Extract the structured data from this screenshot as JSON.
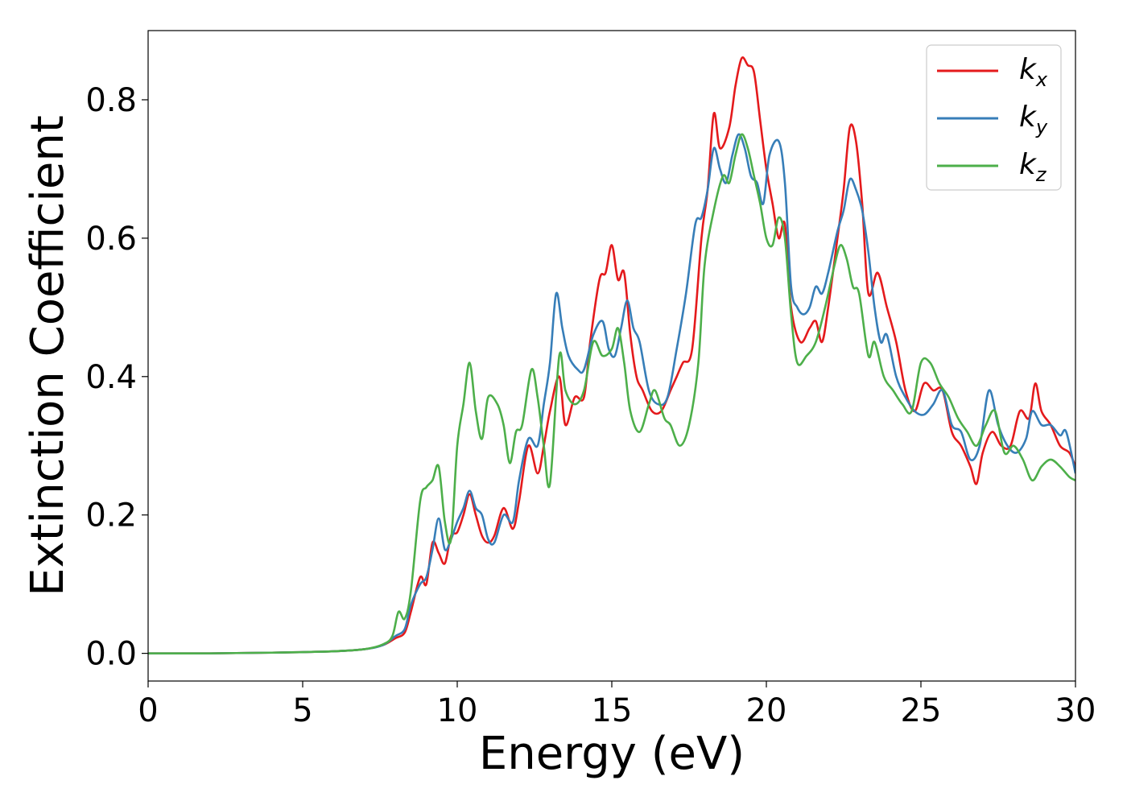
{
  "chart_data": {
    "type": "line",
    "title": "",
    "xlabel": "Energy (eV)",
    "ylabel": "Extinction Coefficient",
    "xlim": [
      0,
      30
    ],
    "ylim": [
      -0.04,
      0.9
    ],
    "xticks": [
      0,
      5,
      10,
      15,
      20,
      25,
      30
    ],
    "xtick_labels": [
      "0",
      "5",
      "10",
      "15",
      "20",
      "25",
      "30"
    ],
    "yticks": [
      0.0,
      0.2,
      0.4,
      0.6,
      0.8
    ],
    "ytick_labels": [
      "0.0",
      "0.2",
      "0.4",
      "0.6",
      "0.8"
    ],
    "grid": false,
    "legend_position": "top-right",
    "series": [
      {
        "name": "k_x",
        "label_main": "k",
        "label_sub": "x",
        "color": "#e41a1c",
        "points": [
          [
            0,
            0.0
          ],
          [
            2,
            0.0
          ],
          [
            4,
            0.001
          ],
          [
            6,
            0.003
          ],
          [
            7,
            0.006
          ],
          [
            7.6,
            0.012
          ],
          [
            8.0,
            0.022
          ],
          [
            8.3,
            0.03
          ],
          [
            8.5,
            0.06
          ],
          [
            8.8,
            0.11
          ],
          [
            9.0,
            0.1
          ],
          [
            9.2,
            0.16
          ],
          [
            9.4,
            0.145
          ],
          [
            9.6,
            0.13
          ],
          [
            9.8,
            0.17
          ],
          [
            10.0,
            0.175
          ],
          [
            10.2,
            0.2
          ],
          [
            10.4,
            0.23
          ],
          [
            10.6,
            0.2
          ],
          [
            10.8,
            0.17
          ],
          [
            11.0,
            0.16
          ],
          [
            11.2,
            0.17
          ],
          [
            11.5,
            0.21
          ],
          [
            11.8,
            0.18
          ],
          [
            12.0,
            0.22
          ],
          [
            12.3,
            0.3
          ],
          [
            12.6,
            0.26
          ],
          [
            12.8,
            0.3
          ],
          [
            13.0,
            0.35
          ],
          [
            13.3,
            0.4
          ],
          [
            13.5,
            0.33
          ],
          [
            13.8,
            0.37
          ],
          [
            14.1,
            0.37
          ],
          [
            14.3,
            0.45
          ],
          [
            14.6,
            0.54
          ],
          [
            14.8,
            0.55
          ],
          [
            15.0,
            0.59
          ],
          [
            15.2,
            0.54
          ],
          [
            15.4,
            0.55
          ],
          [
            15.6,
            0.46
          ],
          [
            15.8,
            0.4
          ],
          [
            16.0,
            0.38
          ],
          [
            16.3,
            0.35
          ],
          [
            16.6,
            0.35
          ],
          [
            16.9,
            0.38
          ],
          [
            17.1,
            0.4
          ],
          [
            17.3,
            0.42
          ],
          [
            17.6,
            0.44
          ],
          [
            17.9,
            0.6
          ],
          [
            18.1,
            0.67
          ],
          [
            18.3,
            0.78
          ],
          [
            18.5,
            0.73
          ],
          [
            18.8,
            0.76
          ],
          [
            19.0,
            0.82
          ],
          [
            19.2,
            0.86
          ],
          [
            19.4,
            0.85
          ],
          [
            19.6,
            0.84
          ],
          [
            19.8,
            0.77
          ],
          [
            20.0,
            0.7
          ],
          [
            20.2,
            0.65
          ],
          [
            20.4,
            0.6
          ],
          [
            20.6,
            0.62
          ],
          [
            20.8,
            0.5
          ],
          [
            21.1,
            0.45
          ],
          [
            21.4,
            0.47
          ],
          [
            21.6,
            0.48
          ],
          [
            21.8,
            0.45
          ],
          [
            22.0,
            0.5
          ],
          [
            22.3,
            0.6
          ],
          [
            22.5,
            0.67
          ],
          [
            22.7,
            0.76
          ],
          [
            22.9,
            0.74
          ],
          [
            23.1,
            0.65
          ],
          [
            23.3,
            0.52
          ],
          [
            23.6,
            0.55
          ],
          [
            23.9,
            0.5
          ],
          [
            24.2,
            0.45
          ],
          [
            24.5,
            0.38
          ],
          [
            24.8,
            0.35
          ],
          [
            25.1,
            0.39
          ],
          [
            25.4,
            0.38
          ],
          [
            25.7,
            0.38
          ],
          [
            26.0,
            0.32
          ],
          [
            26.3,
            0.3
          ],
          [
            26.6,
            0.27
          ],
          [
            26.8,
            0.245
          ],
          [
            27.0,
            0.29
          ],
          [
            27.3,
            0.32
          ],
          [
            27.6,
            0.3
          ],
          [
            27.9,
            0.3
          ],
          [
            28.2,
            0.35
          ],
          [
            28.5,
            0.34
          ],
          [
            28.7,
            0.39
          ],
          [
            28.9,
            0.35
          ],
          [
            29.2,
            0.33
          ],
          [
            29.5,
            0.3
          ],
          [
            29.8,
            0.29
          ],
          [
            30.0,
            0.27
          ]
        ]
      },
      {
        "name": "k_y",
        "label_main": "k",
        "label_sub": "y",
        "color": "#377eb8",
        "points": [
          [
            0,
            0.0
          ],
          [
            2,
            0.0
          ],
          [
            4,
            0.001
          ],
          [
            6,
            0.003
          ],
          [
            7,
            0.006
          ],
          [
            7.6,
            0.012
          ],
          [
            8.0,
            0.025
          ],
          [
            8.3,
            0.035
          ],
          [
            8.5,
            0.07
          ],
          [
            8.8,
            0.1
          ],
          [
            9.0,
            0.11
          ],
          [
            9.2,
            0.15
          ],
          [
            9.4,
            0.195
          ],
          [
            9.6,
            0.15
          ],
          [
            9.8,
            0.165
          ],
          [
            10.0,
            0.19
          ],
          [
            10.2,
            0.21
          ],
          [
            10.4,
            0.235
          ],
          [
            10.6,
            0.21
          ],
          [
            10.8,
            0.2
          ],
          [
            11.0,
            0.165
          ],
          [
            11.2,
            0.16
          ],
          [
            11.5,
            0.2
          ],
          [
            11.8,
            0.19
          ],
          [
            12.0,
            0.25
          ],
          [
            12.3,
            0.31
          ],
          [
            12.6,
            0.3
          ],
          [
            12.8,
            0.36
          ],
          [
            13.0,
            0.42
          ],
          [
            13.2,
            0.52
          ],
          [
            13.4,
            0.47
          ],
          [
            13.6,
            0.43
          ],
          [
            13.9,
            0.41
          ],
          [
            14.1,
            0.41
          ],
          [
            14.4,
            0.46
          ],
          [
            14.7,
            0.48
          ],
          [
            14.9,
            0.44
          ],
          [
            15.1,
            0.43
          ],
          [
            15.3,
            0.47
          ],
          [
            15.5,
            0.51
          ],
          [
            15.7,
            0.47
          ],
          [
            15.9,
            0.45
          ],
          [
            16.2,
            0.38
          ],
          [
            16.5,
            0.36
          ],
          [
            16.8,
            0.37
          ],
          [
            17.1,
            0.44
          ],
          [
            17.4,
            0.52
          ],
          [
            17.7,
            0.62
          ],
          [
            17.9,
            0.63
          ],
          [
            18.1,
            0.67
          ],
          [
            18.3,
            0.73
          ],
          [
            18.5,
            0.7
          ],
          [
            18.7,
            0.68
          ],
          [
            18.9,
            0.72
          ],
          [
            19.1,
            0.75
          ],
          [
            19.3,
            0.73
          ],
          [
            19.5,
            0.69
          ],
          [
            19.7,
            0.68
          ],
          [
            19.9,
            0.65
          ],
          [
            20.1,
            0.72
          ],
          [
            20.4,
            0.74
          ],
          [
            20.6,
            0.68
          ],
          [
            20.8,
            0.53
          ],
          [
            21.0,
            0.5
          ],
          [
            21.2,
            0.49
          ],
          [
            21.4,
            0.5
          ],
          [
            21.6,
            0.53
          ],
          [
            21.8,
            0.52
          ],
          [
            22.0,
            0.55
          ],
          [
            22.3,
            0.61
          ],
          [
            22.5,
            0.64
          ],
          [
            22.7,
            0.685
          ],
          [
            22.9,
            0.67
          ],
          [
            23.1,
            0.64
          ],
          [
            23.3,
            0.58
          ],
          [
            23.5,
            0.5
          ],
          [
            23.7,
            0.45
          ],
          [
            23.9,
            0.46
          ],
          [
            24.2,
            0.4
          ],
          [
            24.5,
            0.37
          ],
          [
            24.8,
            0.35
          ],
          [
            25.1,
            0.345
          ],
          [
            25.4,
            0.36
          ],
          [
            25.7,
            0.38
          ],
          [
            26.0,
            0.33
          ],
          [
            26.3,
            0.32
          ],
          [
            26.6,
            0.28
          ],
          [
            26.9,
            0.3
          ],
          [
            27.2,
            0.38
          ],
          [
            27.5,
            0.33
          ],
          [
            27.8,
            0.3
          ],
          [
            28.1,
            0.29
          ],
          [
            28.4,
            0.31
          ],
          [
            28.6,
            0.35
          ],
          [
            28.9,
            0.33
          ],
          [
            29.2,
            0.33
          ],
          [
            29.5,
            0.315
          ],
          [
            29.7,
            0.32
          ],
          [
            30.0,
            0.26
          ]
        ]
      },
      {
        "name": "k_z",
        "label_main": "k",
        "label_sub": "z",
        "color": "#4daf4a",
        "points": [
          [
            0,
            0.0
          ],
          [
            2,
            0.0
          ],
          [
            4,
            0.001
          ],
          [
            6,
            0.003
          ],
          [
            7,
            0.006
          ],
          [
            7.6,
            0.013
          ],
          [
            7.9,
            0.025
          ],
          [
            8.1,
            0.06
          ],
          [
            8.3,
            0.05
          ],
          [
            8.5,
            0.09
          ],
          [
            8.8,
            0.22
          ],
          [
            9.0,
            0.24
          ],
          [
            9.2,
            0.25
          ],
          [
            9.4,
            0.27
          ],
          [
            9.6,
            0.19
          ],
          [
            9.8,
            0.165
          ],
          [
            10.0,
            0.3
          ],
          [
            10.2,
            0.36
          ],
          [
            10.4,
            0.42
          ],
          [
            10.6,
            0.35
          ],
          [
            10.8,
            0.31
          ],
          [
            11.0,
            0.37
          ],
          [
            11.3,
            0.36
          ],
          [
            11.5,
            0.33
          ],
          [
            11.7,
            0.275
          ],
          [
            11.9,
            0.32
          ],
          [
            12.1,
            0.33
          ],
          [
            12.4,
            0.41
          ],
          [
            12.6,
            0.37
          ],
          [
            12.8,
            0.3
          ],
          [
            13.0,
            0.245
          ],
          [
            13.3,
            0.43
          ],
          [
            13.5,
            0.38
          ],
          [
            13.8,
            0.36
          ],
          [
            14.1,
            0.38
          ],
          [
            14.4,
            0.45
          ],
          [
            14.7,
            0.43
          ],
          [
            15.0,
            0.44
          ],
          [
            15.2,
            0.47
          ],
          [
            15.4,
            0.42
          ],
          [
            15.6,
            0.35
          ],
          [
            15.9,
            0.32
          ],
          [
            16.2,
            0.36
          ],
          [
            16.4,
            0.38
          ],
          [
            16.7,
            0.34
          ],
          [
            16.9,
            0.33
          ],
          [
            17.2,
            0.3
          ],
          [
            17.5,
            0.33
          ],
          [
            17.8,
            0.42
          ],
          [
            18.0,
            0.56
          ],
          [
            18.3,
            0.64
          ],
          [
            18.6,
            0.69
          ],
          [
            18.8,
            0.68
          ],
          [
            19.0,
            0.72
          ],
          [
            19.2,
            0.75
          ],
          [
            19.4,
            0.73
          ],
          [
            19.6,
            0.69
          ],
          [
            19.8,
            0.65
          ],
          [
            20.0,
            0.6
          ],
          [
            20.2,
            0.59
          ],
          [
            20.4,
            0.63
          ],
          [
            20.6,
            0.6
          ],
          [
            20.8,
            0.49
          ],
          [
            21.0,
            0.42
          ],
          [
            21.3,
            0.43
          ],
          [
            21.6,
            0.45
          ],
          [
            21.9,
            0.5
          ],
          [
            22.2,
            0.56
          ],
          [
            22.4,
            0.59
          ],
          [
            22.6,
            0.57
          ],
          [
            22.8,
            0.53
          ],
          [
            23.0,
            0.52
          ],
          [
            23.3,
            0.43
          ],
          [
            23.5,
            0.45
          ],
          [
            23.8,
            0.4
          ],
          [
            24.1,
            0.38
          ],
          [
            24.4,
            0.36
          ],
          [
            24.7,
            0.35
          ],
          [
            25.0,
            0.42
          ],
          [
            25.3,
            0.42
          ],
          [
            25.6,
            0.39
          ],
          [
            25.9,
            0.37
          ],
          [
            26.2,
            0.34
          ],
          [
            26.5,
            0.32
          ],
          [
            26.8,
            0.3
          ],
          [
            27.1,
            0.33
          ],
          [
            27.4,
            0.35
          ],
          [
            27.7,
            0.29
          ],
          [
            28.0,
            0.3
          ],
          [
            28.3,
            0.28
          ],
          [
            28.6,
            0.25
          ],
          [
            28.9,
            0.27
          ],
          [
            29.2,
            0.28
          ],
          [
            29.5,
            0.27
          ],
          [
            29.8,
            0.255
          ],
          [
            30.0,
            0.25
          ]
        ]
      }
    ]
  }
}
